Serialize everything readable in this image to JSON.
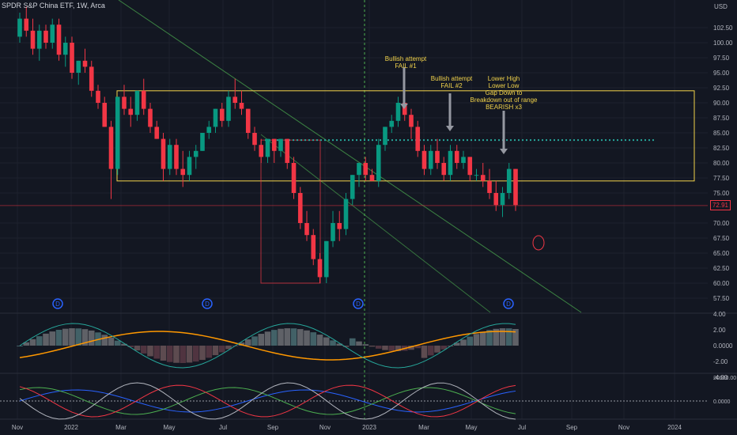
{
  "header": {
    "title": "SPDR S&P China ETF, 1W, Arca"
  },
  "axis": {
    "currency": "USD",
    "price_ticks": [
      "102.50",
      "100.00",
      "97.50",
      "95.00",
      "92.50",
      "90.00",
      "87.50",
      "85.00",
      "82.50",
      "80.00",
      "77.50",
      "75.00",
      "70.00",
      "67.50",
      "65.00",
      "62.50",
      "60.00",
      "57.50"
    ],
    "osc1_ticks": [
      "4.00",
      "2.00",
      "0.0000",
      "-2.00",
      "-4.00"
    ],
    "osc2_ticks": [
      "20000.00",
      "0.0000"
    ],
    "x_ticks": [
      "Nov",
      "2022",
      "Mar",
      "May",
      "Jul",
      "Sep",
      "Nov",
      "2023",
      "Mar",
      "May",
      "Jul",
      "Sep",
      "Nov",
      "2024"
    ]
  },
  "price_label": "72.91",
  "annotations": [
    {
      "id": "fail1",
      "text": "Bullish attempt\nFAIL #1"
    },
    {
      "id": "fail2",
      "text": "Bullish attempt\nFAIL #2"
    },
    {
      "id": "bearish",
      "text": "Lower High\nLower Low\nGap Down to\nBreakdown out of range\nBEARISH x3"
    }
  ],
  "markers": [
    "D",
    "D",
    "D",
    "D"
  ],
  "colors": {
    "bg": "#131722",
    "up": "#089981",
    "down": "#f23645",
    "range": "#f2d34b",
    "dotted": "#26a69a",
    "trend": "#4caf50",
    "orange": "#ff9800"
  },
  "chart_data": {
    "type": "candlestick",
    "title": "SPDR S&P China ETF, 1W, Arca",
    "ylabel": "USD",
    "ylim": [
      55,
      105
    ],
    "last_price": 72.91,
    "range_box": [
      77.0,
      92.0
    ],
    "resistance_level": 83.8,
    "ohlc_weekly": [
      [
        101,
        105,
        100,
        104
      ],
      [
        104,
        106,
        101,
        102
      ],
      [
        102,
        104,
        98,
        99
      ],
      [
        99,
        103,
        97,
        102
      ],
      [
        102,
        103,
        99,
        100
      ],
      [
        100,
        104,
        99,
        103
      ],
      [
        103,
        104,
        97,
        98
      ],
      [
        98,
        101,
        96,
        100
      ],
      [
        100,
        101,
        94,
        95
      ],
      [
        95,
        97,
        93,
        97
      ],
      [
        97,
        99,
        95,
        96
      ],
      [
        96,
        97,
        91,
        92
      ],
      [
        92,
        93,
        89,
        90
      ],
      [
        90,
        91,
        86,
        86
      ],
      [
        86,
        87,
        74,
        79
      ],
      [
        79,
        91,
        78,
        91
      ],
      [
        91,
        93,
        88,
        89
      ],
      [
        89,
        91,
        86,
        88
      ],
      [
        88,
        92,
        87,
        92
      ],
      [
        92,
        94,
        88,
        89
      ],
      [
        89,
        90,
        85,
        86
      ],
      [
        86,
        87,
        84,
        84
      ],
      [
        84,
        85,
        77,
        79
      ],
      [
        79,
        84,
        78,
        83
      ],
      [
        83,
        84,
        78,
        79
      ],
      [
        79,
        82,
        76,
        78
      ],
      [
        78,
        82,
        77,
        81
      ],
      [
        81,
        83,
        79,
        82
      ],
      [
        82,
        85,
        82,
        85
      ],
      [
        85,
        87,
        84,
        86
      ],
      [
        86,
        89,
        85,
        89
      ],
      [
        89,
        90,
        86,
        87
      ],
      [
        87,
        92,
        86,
        91
      ],
      [
        91,
        94,
        89,
        90
      ],
      [
        90,
        92,
        88,
        89
      ],
      [
        89,
        89,
        84,
        85
      ],
      [
        85,
        86,
        82,
        83
      ],
      [
        83,
        84,
        80,
        81
      ],
      [
        81,
        84,
        80,
        84
      ],
      [
        84,
        84,
        80,
        82
      ],
      [
        82,
        84,
        81,
        84
      ],
      [
        84,
        84,
        79,
        80
      ],
      [
        80,
        81,
        74,
        75
      ],
      [
        75,
        76,
        69,
        70
      ],
      [
        70,
        72,
        67,
        68
      ],
      [
        68,
        69,
        63,
        64
      ],
      [
        64,
        65,
        60,
        61
      ],
      [
        61,
        67,
        60,
        67
      ],
      [
        67,
        72,
        66,
        70
      ],
      [
        70,
        72,
        67,
        69
      ],
      [
        69,
        75,
        68,
        74
      ],
      [
        74,
        78,
        73,
        78
      ],
      [
        78,
        80,
        76,
        80
      ],
      [
        80,
        81,
        77,
        78
      ],
      [
        78,
        79,
        77,
        77
      ],
      [
        77,
        84,
        76,
        83
      ],
      [
        83,
        86,
        82,
        86
      ],
      [
        86,
        88,
        85,
        87
      ],
      [
        87,
        91,
        86,
        90
      ],
      [
        90,
        91,
        87,
        88
      ],
      [
        88,
        89,
        84,
        86
      ],
      [
        86,
        87,
        81,
        82
      ],
      [
        82,
        83,
        78,
        79
      ],
      [
        79,
        83,
        78,
        82
      ],
      [
        82,
        84,
        79,
        80
      ],
      [
        80,
        81,
        77,
        78
      ],
      [
        78,
        83,
        77,
        82
      ],
      [
        82,
        83,
        79,
        80
      ],
      [
        80,
        82,
        79,
        81
      ],
      [
        81,
        81,
        77,
        78
      ],
      [
        78,
        79,
        77,
        78
      ],
      [
        78,
        80,
        76,
        77
      ],
      [
        77,
        79,
        74,
        75
      ],
      [
        75,
        77,
        72,
        73
      ],
      [
        73,
        76,
        71,
        75
      ],
      [
        75,
        80,
        74,
        79
      ],
      [
        79,
        79,
        72,
        73
      ]
    ]
  }
}
